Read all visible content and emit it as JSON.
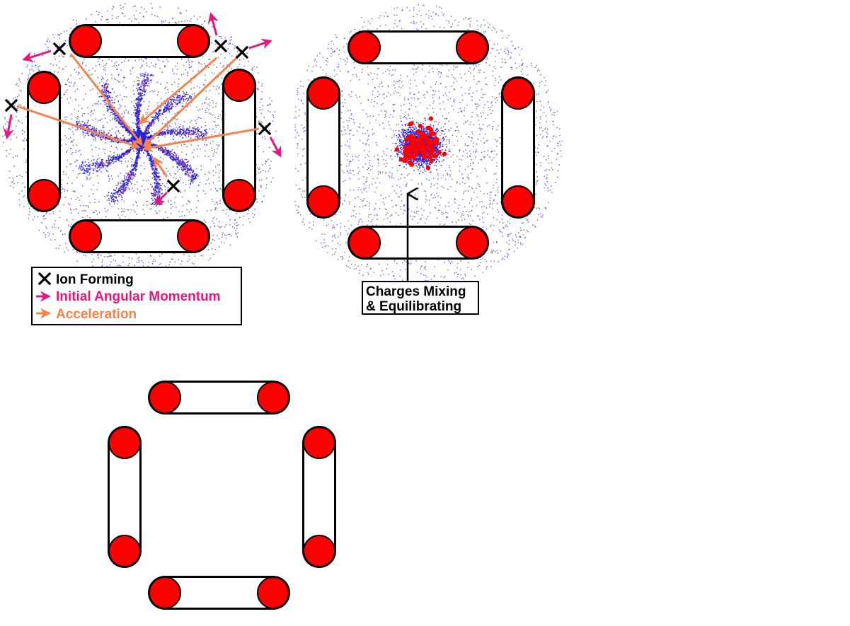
{
  "legend": {
    "items": [
      {
        "label": "Ion Forming",
        "symbol": "x-mark-icon",
        "color": "#000000"
      },
      {
        "label": "Initial Angular Momentum",
        "symbol": "arrow-right-icon",
        "color": "#e8157f"
      },
      {
        "label": "Acceleration",
        "symbol": "arrow-right-icon",
        "color": "#f5834a"
      }
    ]
  },
  "callout": {
    "line1": "Charges Mixing",
    "line2": "& Equilibrating"
  },
  "colors": {
    "electrode_fill": "#ff0000",
    "electrode_outline": "#000000",
    "cloud_blue": "#2020e0",
    "cloud_magenta": "#c03080",
    "ion_dot": "#ff0000",
    "angular_momentum": "#e8157f",
    "acceleration": "#f5834a"
  },
  "panels": [
    {
      "id": "ion-formation",
      "electrodes": "quadrupole",
      "cloud": "radial"
    },
    {
      "id": "charge-mixing",
      "electrodes": "quadrupole",
      "cloud": "diffuse"
    },
    {
      "id": "empty-trap",
      "electrodes": "quadrupole",
      "cloud": "none"
    }
  ]
}
